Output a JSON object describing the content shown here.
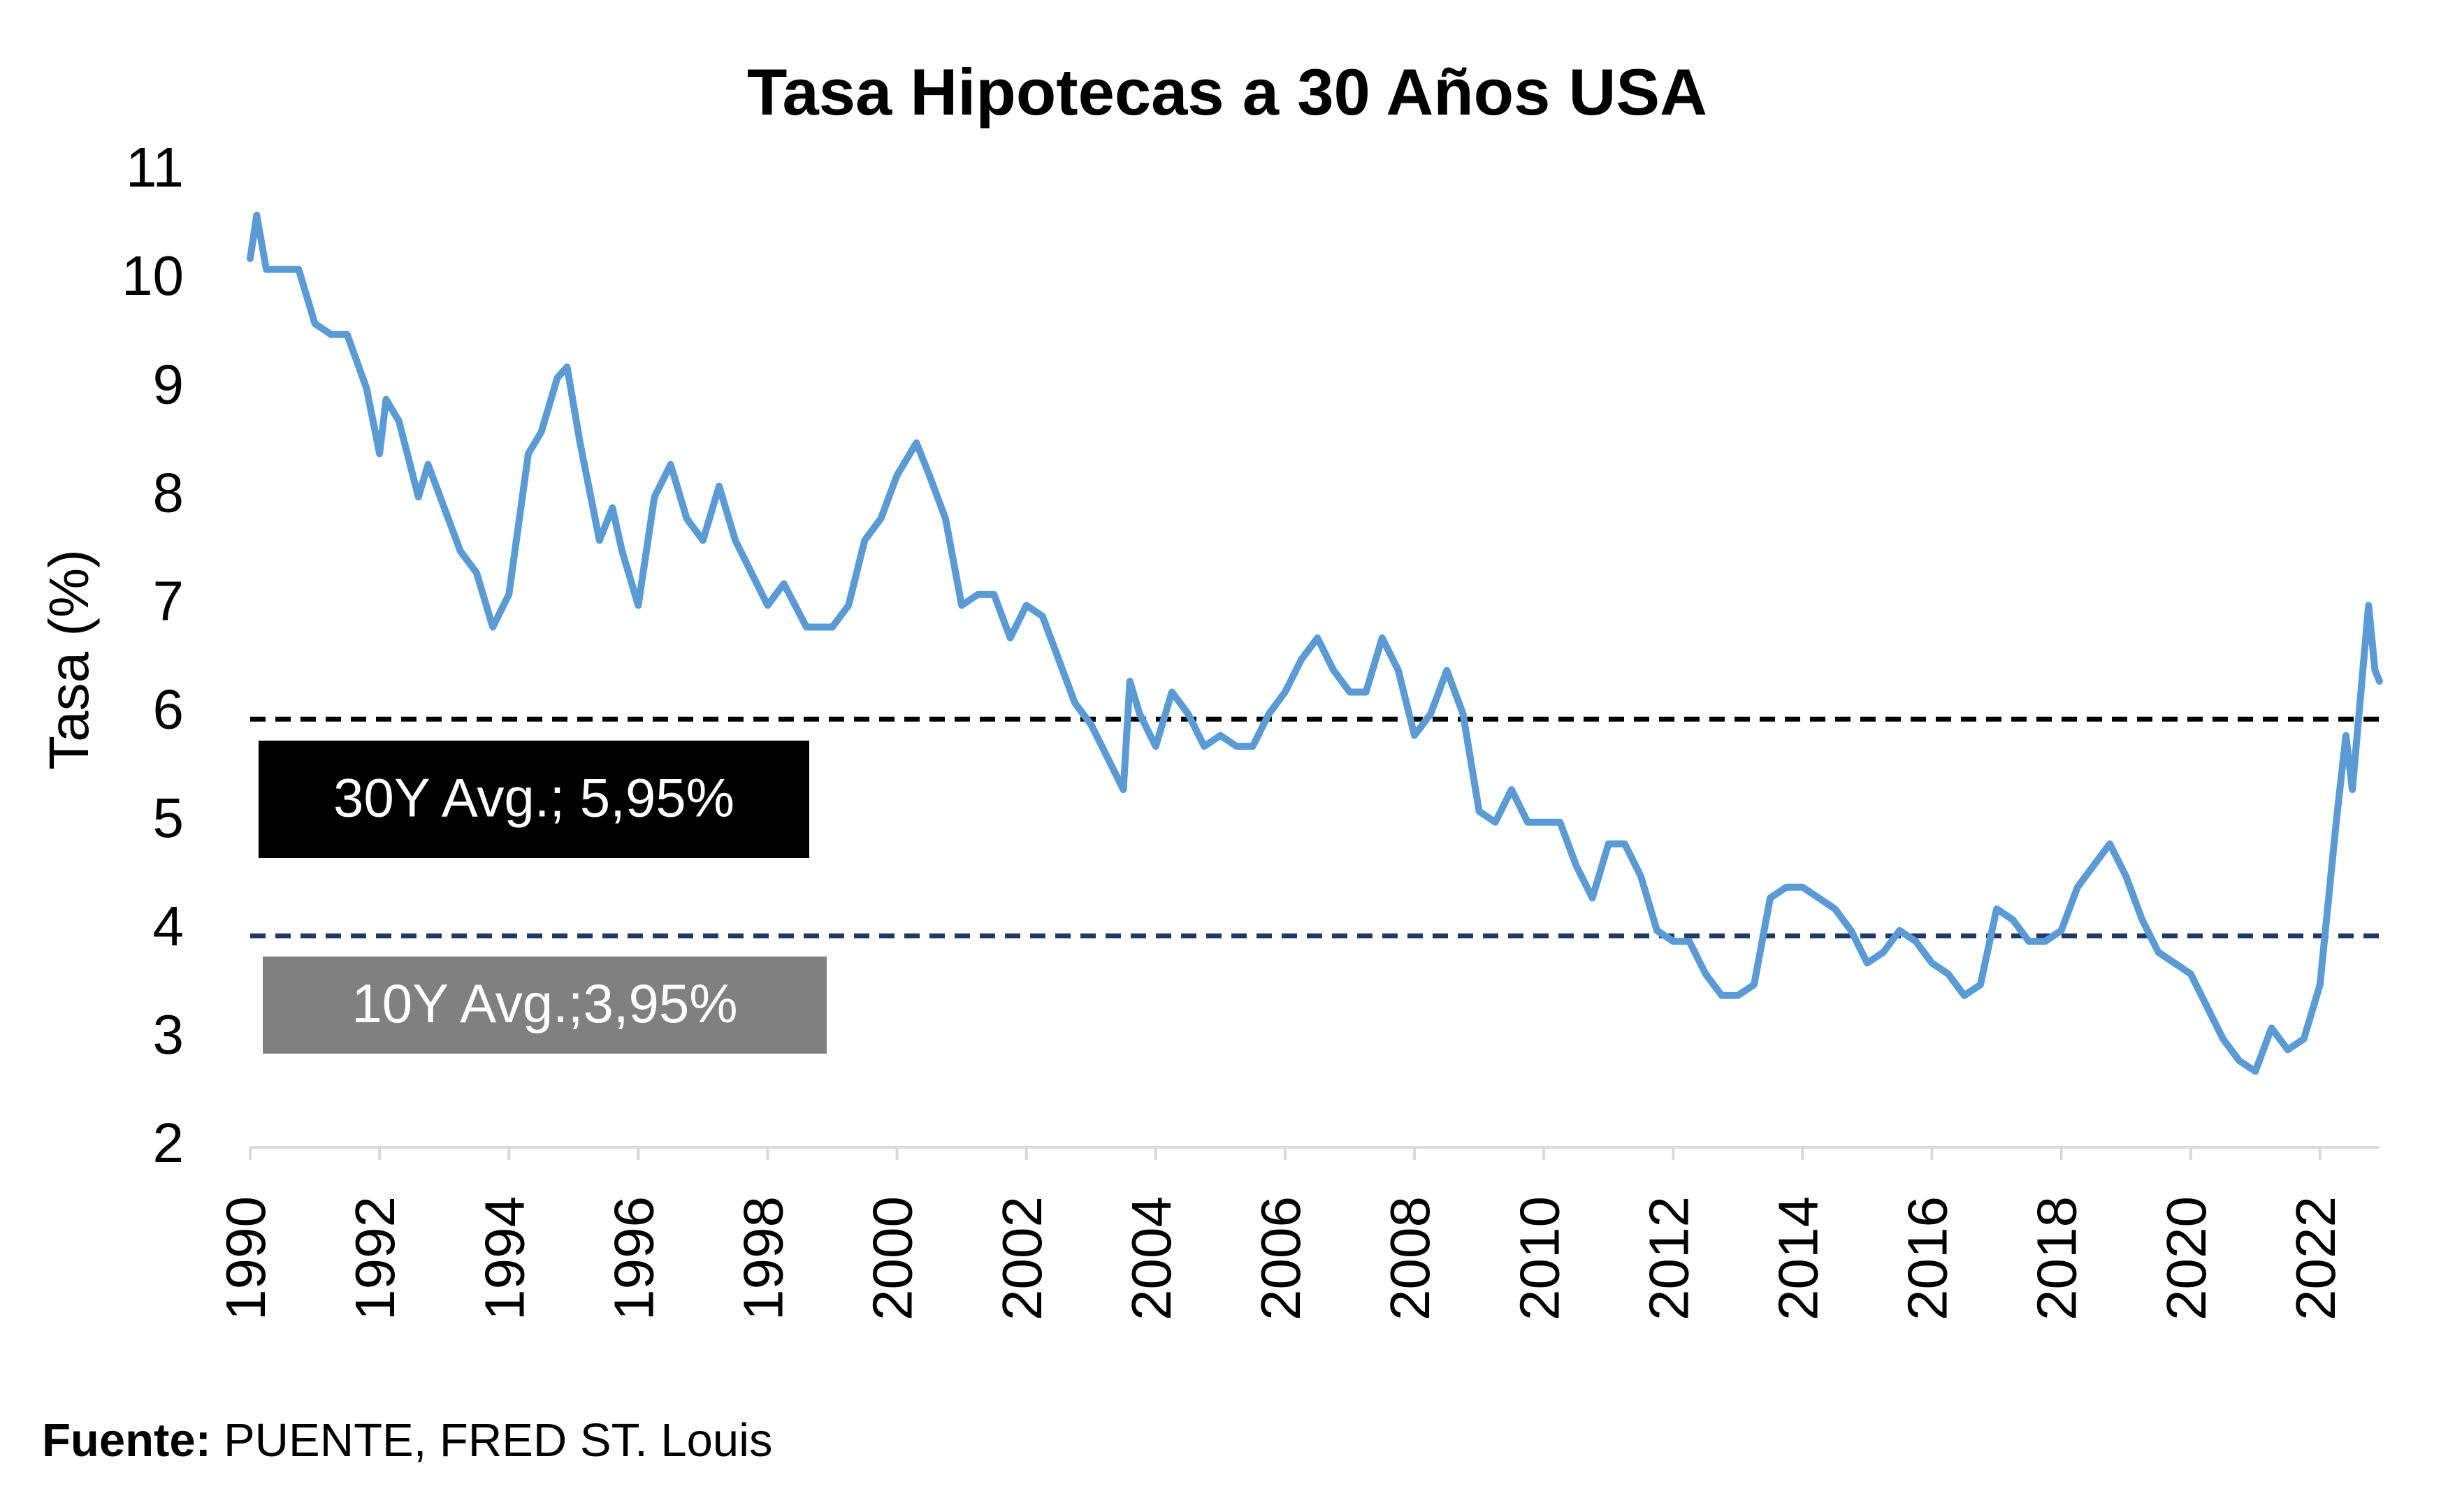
{
  "chart_data": {
    "type": "line",
    "title": "Tasa Hipotecas a 30 Años USA",
    "y_label": "Tasa (%)",
    "xlim": [
      1990,
      2022.92
    ],
    "xticks": [
      1990,
      1992,
      1994,
      1996,
      1998,
      2000,
      2002,
      2004,
      2006,
      2008,
      2010,
      2012,
      2014,
      2016,
      2018,
      2020,
      2022
    ],
    "ylim": [
      2,
      11
    ],
    "yticks": [
      2,
      3,
      4,
      5,
      6,
      7,
      8,
      9,
      10,
      11
    ],
    "series": [
      {
        "name": "Tasa",
        "color": "#5b9bd5",
        "x": [
          1990.0,
          1990.1,
          1990.25,
          1990.5,
          1990.75,
          1991.0,
          1991.25,
          1991.5,
          1991.8,
          1992.0,
          1992.1,
          1992.3,
          1992.6,
          1992.75,
          1993.0,
          1993.25,
          1993.5,
          1993.75,
          1994.0,
          1994.3,
          1994.5,
          1994.75,
          1994.9,
          1995.1,
          1995.4,
          1995.6,
          1995.75,
          1996.0,
          1996.25,
          1996.5,
          1996.75,
          1997.0,
          1997.25,
          1997.5,
          1997.75,
          1998.0,
          1998.25,
          1998.6,
          1998.8,
          1999.0,
          1999.25,
          1999.5,
          1999.75,
          2000.0,
          2000.3,
          2000.5,
          2000.75,
          2001.0,
          2001.25,
          2001.5,
          2001.75,
          2002.0,
          2002.25,
          2002.5,
          2002.75,
          2003.0,
          2003.25,
          2003.5,
          2003.6,
          2003.75,
          2004.0,
          2004.25,
          2004.5,
          2004.75,
          2005.0,
          2005.25,
          2005.5,
          2005.75,
          2006.0,
          2006.25,
          2006.5,
          2006.75,
          2007.0,
          2007.25,
          2007.5,
          2007.75,
          2008.0,
          2008.25,
          2008.5,
          2008.75,
          2009.0,
          2009.25,
          2009.5,
          2009.75,
          2010.0,
          2010.25,
          2010.5,
          2010.75,
          2011.0,
          2011.25,
          2011.5,
          2011.75,
          2012.0,
          2012.25,
          2012.5,
          2012.75,
          2013.0,
          2013.25,
          2013.5,
          2013.75,
          2014.0,
          2014.25,
          2014.5,
          2014.75,
          2015.0,
          2015.25,
          2015.5,
          2015.75,
          2016.0,
          2016.25,
          2016.5,
          2016.75,
          2017.0,
          2017.25,
          2017.5,
          2017.75,
          2018.0,
          2018.25,
          2018.5,
          2018.75,
          2019.0,
          2019.25,
          2019.5,
          2019.75,
          2020.0,
          2020.25,
          2020.5,
          2020.75,
          2021.0,
          2021.25,
          2021.5,
          2021.75,
          2022.0,
          2022.25,
          2022.4,
          2022.5,
          2022.75,
          2022.85,
          2022.92
        ],
        "values": [
          10.2,
          10.6,
          10.1,
          10.1,
          10.1,
          9.6,
          9.5,
          9.5,
          9.0,
          8.4,
          8.9,
          8.7,
          8.0,
          8.3,
          7.9,
          7.5,
          7.3,
          6.8,
          7.1,
          8.4,
          8.6,
          9.1,
          9.2,
          8.5,
          7.6,
          7.9,
          7.5,
          7.0,
          8.0,
          8.3,
          7.8,
          7.6,
          8.1,
          7.6,
          7.3,
          7.0,
          7.2,
          6.8,
          6.8,
          6.8,
          7.0,
          7.6,
          7.8,
          8.2,
          8.5,
          8.2,
          7.8,
          7.0,
          7.1,
          7.1,
          6.7,
          7.0,
          6.9,
          6.5,
          6.1,
          5.9,
          5.6,
          5.3,
          6.3,
          6.0,
          5.7,
          6.2,
          6.0,
          5.7,
          5.8,
          5.7,
          5.7,
          6.0,
          6.2,
          6.5,
          6.7,
          6.4,
          6.2,
          6.2,
          6.7,
          6.4,
          5.8,
          6.0,
          6.4,
          6.0,
          5.1,
          5.0,
          5.3,
          5.0,
          5.0,
          5.0,
          4.6,
          4.3,
          4.8,
          4.8,
          4.5,
          4.0,
          3.9,
          3.9,
          3.6,
          3.4,
          3.4,
          3.5,
          4.3,
          4.4,
          4.4,
          4.3,
          4.2,
          4.0,
          3.7,
          3.8,
          4.0,
          3.9,
          3.7,
          3.6,
          3.4,
          3.5,
          4.2,
          4.1,
          3.9,
          3.9,
          4.0,
          4.4,
          4.6,
          4.8,
          4.5,
          4.1,
          3.8,
          3.7,
          3.6,
          3.3,
          3.0,
          2.8,
          2.7,
          3.1,
          2.9,
          3.0,
          3.5,
          5.0,
          5.8,
          5.3,
          7.0,
          6.4,
          6.3
        ]
      }
    ],
    "reference_lines": [
      {
        "value": 5.95,
        "label": "30Y Avg.; 5,95%",
        "color": "#000000",
        "box_color": "#000000"
      },
      {
        "value": 3.95,
        "label": "10Y Avg.;3,95%",
        "color": "#1f3864",
        "box_color": "#808080"
      }
    ],
    "source": {
      "label": "Fuente:",
      "text": "PUENTE, FRED ST. Louis"
    }
  }
}
